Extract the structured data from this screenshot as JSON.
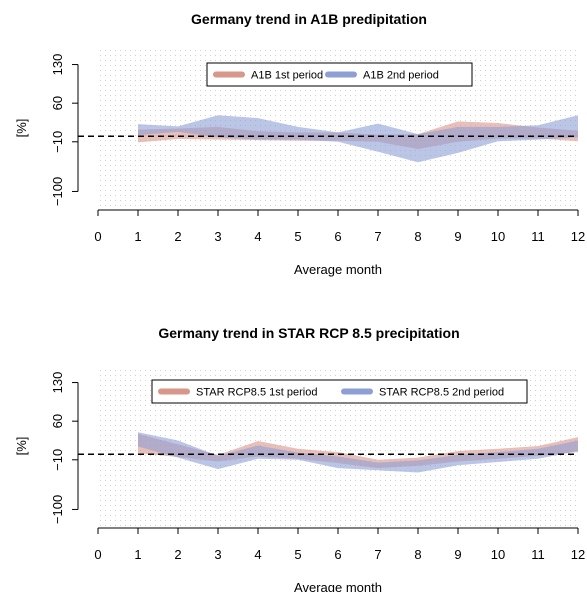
{
  "chart_data": [
    {
      "type": "area",
      "title": "Germany trend in A1B predipitation",
      "xlabel": "Average month",
      "ylabel": "[%]",
      "x_ticks": [
        0,
        1,
        2,
        3,
        4,
        5,
        6,
        7,
        8,
        9,
        10,
        11,
        12
      ],
      "y_ticks": [
        -100,
        -10,
        60,
        130
      ],
      "xlim": [
        0,
        12
      ],
      "ylim": [
        -130,
        160
      ],
      "grid": true,
      "legend_position": "top",
      "reference_line": 0,
      "x": [
        1,
        2,
        3,
        4,
        5,
        6,
        7,
        8,
        9,
        10,
        11,
        12
      ],
      "series": [
        {
          "name": "A1B 1st period",
          "color": "#d9968a",
          "upper": [
            12,
            14,
            17,
            9,
            7,
            7,
            3,
            4,
            27,
            24,
            16,
            10
          ],
          "lower": [
            -11,
            -5,
            -6,
            -7,
            -8,
            -8,
            -10,
            -23,
            -10,
            -4,
            -4,
            -9
          ]
        },
        {
          "name": "A1B 2nd period",
          "color": "#8e9fd6",
          "upper": [
            22,
            18,
            38,
            33,
            17,
            7,
            23,
            4,
            17,
            17,
            20,
            38
          ],
          "lower": [
            2,
            8,
            -2,
            -6,
            -6,
            -10,
            -28,
            -47,
            -30,
            -9,
            -6,
            -2
          ]
        }
      ]
    },
    {
      "type": "area",
      "title": "Germany trend in STAR RCP 8.5 precipitation",
      "xlabel": "Average month",
      "ylabel": "[%]",
      "x_ticks": [
        0,
        1,
        2,
        3,
        4,
        5,
        6,
        7,
        8,
        9,
        10,
        11,
        12
      ],
      "y_ticks": [
        -100,
        -10,
        60,
        130
      ],
      "xlim": [
        0,
        12
      ],
      "ylim": [
        -130,
        160
      ],
      "grid": true,
      "legend_position": "top",
      "reference_line": 0,
      "x": [
        1,
        2,
        3,
        4,
        5,
        6,
        7,
        8,
        9,
        10,
        11,
        12
      ],
      "series": [
        {
          "name": "STAR RCP8.5 1st period",
          "color": "#d9968a",
          "upper": [
            37,
            18,
            -1,
            24,
            10,
            4,
            -10,
            -6,
            6,
            10,
            15,
            31
          ],
          "lower": [
            2,
            -5,
            -13,
            -4,
            -8,
            -16,
            -25,
            -21,
            -13,
            -8,
            -3,
            4
          ]
        },
        {
          "name": "STAR RCP8.5 2nd period",
          "color": "#8e9fd6",
          "upper": [
            40,
            25,
            -3,
            16,
            3,
            -4,
            -15,
            -11,
            -1,
            4,
            10,
            25
          ],
          "lower": [
            14,
            -6,
            -27,
            -8,
            -10,
            -25,
            -29,
            -33,
            -20,
            -14,
            -8,
            6
          ]
        }
      ]
    }
  ]
}
